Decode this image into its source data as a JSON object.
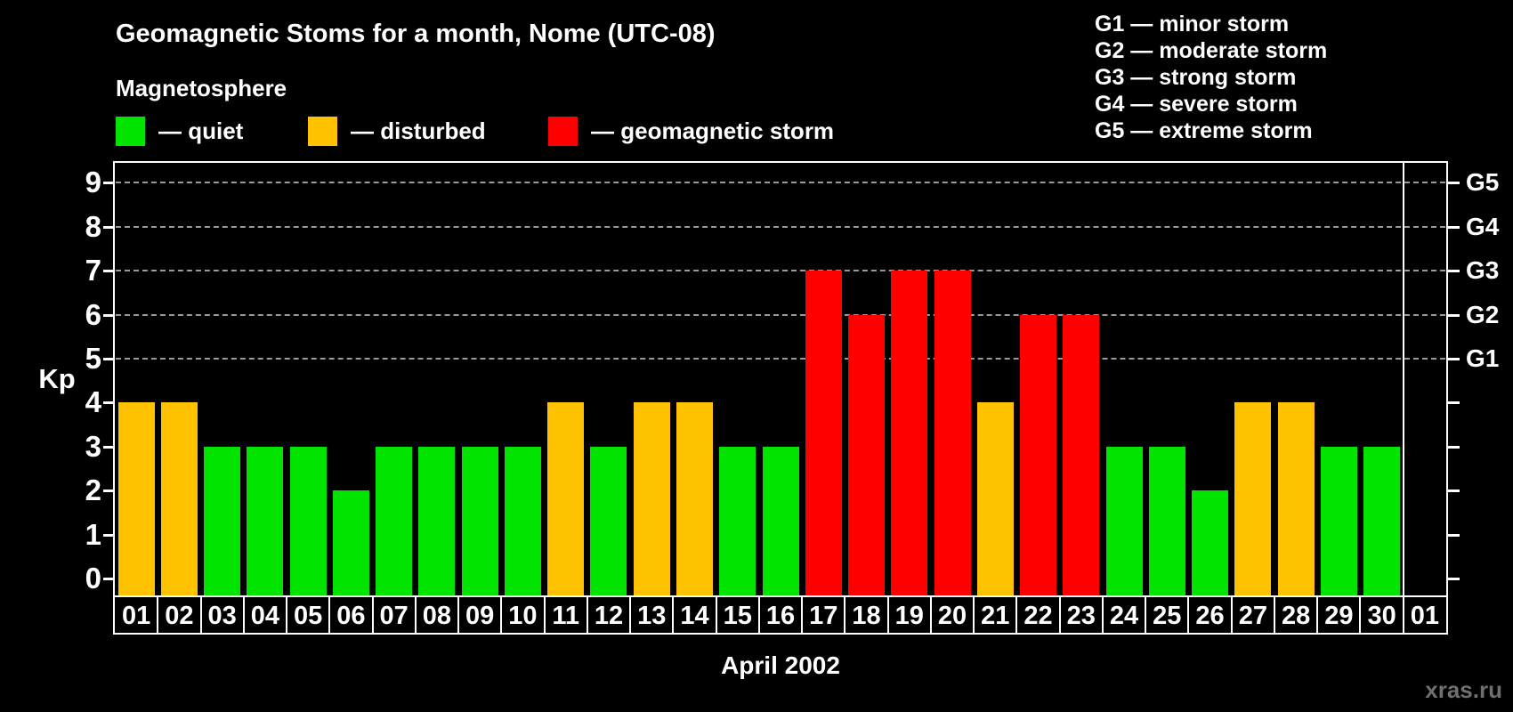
{
  "header": {
    "title": "Geomagnetic Stoms for a month, Nome (UTC-08)",
    "subtitle": "Magnetosphere"
  },
  "legend": {
    "items": [
      {
        "key": "quiet",
        "label": "— quiet",
        "color": "#00e400"
      },
      {
        "key": "disturbed",
        "label": "— disturbed",
        "color": "#ffc200"
      },
      {
        "key": "storm",
        "label": "— geomagnetic storm",
        "color": "#ff0000"
      }
    ]
  },
  "g_legend": {
    "items": [
      {
        "code": "G1",
        "text": "G1 — minor storm",
        "kp": 5
      },
      {
        "code": "G2",
        "text": "G2 — moderate storm",
        "kp": 6
      },
      {
        "code": "G3",
        "text": "G3 — strong storm",
        "kp": 7
      },
      {
        "code": "G4",
        "text": "G4 — severe storm",
        "kp": 8
      },
      {
        "code": "G5",
        "text": "G5 — extreme storm",
        "kp": 9
      }
    ]
  },
  "axis": {
    "y_label": "Kp",
    "y_ticks": [
      0,
      1,
      2,
      3,
      4,
      5,
      6,
      7,
      8,
      9
    ],
    "x_label": "April 2002"
  },
  "chart_data": {
    "type": "bar",
    "title": "Geomagnetic Stoms for a month, Nome (UTC-08)",
    "xlabel": "April 2002",
    "ylabel": "Kp",
    "ylim": [
      0,
      9
    ],
    "grid": "dashed horizontal lines at Kp 5,6,7,8,9 (G1–G5 levels)",
    "legend_position": "top-left",
    "right_axis_labels": [
      "G1",
      "G2",
      "G3",
      "G4",
      "G5"
    ],
    "categories": [
      "01",
      "02",
      "03",
      "04",
      "05",
      "06",
      "07",
      "08",
      "09",
      "10",
      "11",
      "12",
      "13",
      "14",
      "15",
      "16",
      "17",
      "18",
      "19",
      "20",
      "21",
      "22",
      "23",
      "24",
      "25",
      "26",
      "27",
      "28",
      "29",
      "30",
      "01"
    ],
    "values": [
      4,
      4,
      3,
      3,
      3,
      2,
      3,
      3,
      3,
      3,
      4,
      3,
      4,
      4,
      3,
      3,
      7,
      6,
      7,
      7,
      4,
      6,
      6,
      3,
      3,
      2,
      4,
      4,
      3,
      3,
      null
    ],
    "states": [
      "disturbed",
      "disturbed",
      "quiet",
      "quiet",
      "quiet",
      "quiet",
      "quiet",
      "quiet",
      "quiet",
      "quiet",
      "disturbed",
      "quiet",
      "disturbed",
      "disturbed",
      "quiet",
      "quiet",
      "storm",
      "storm",
      "storm",
      "storm",
      "disturbed",
      "storm",
      "storm",
      "quiet",
      "quiet",
      "quiet",
      "disturbed",
      "disturbed",
      "quiet",
      "quiet",
      null
    ]
  },
  "colors": {
    "quiet": "#00e400",
    "disturbed": "#ffc200",
    "storm": "#ff0000",
    "background": "#000000",
    "axis": "#ffffff",
    "grid": "#9a9a9a",
    "watermark": "#6f6f6f"
  },
  "watermark": "xras.ru"
}
